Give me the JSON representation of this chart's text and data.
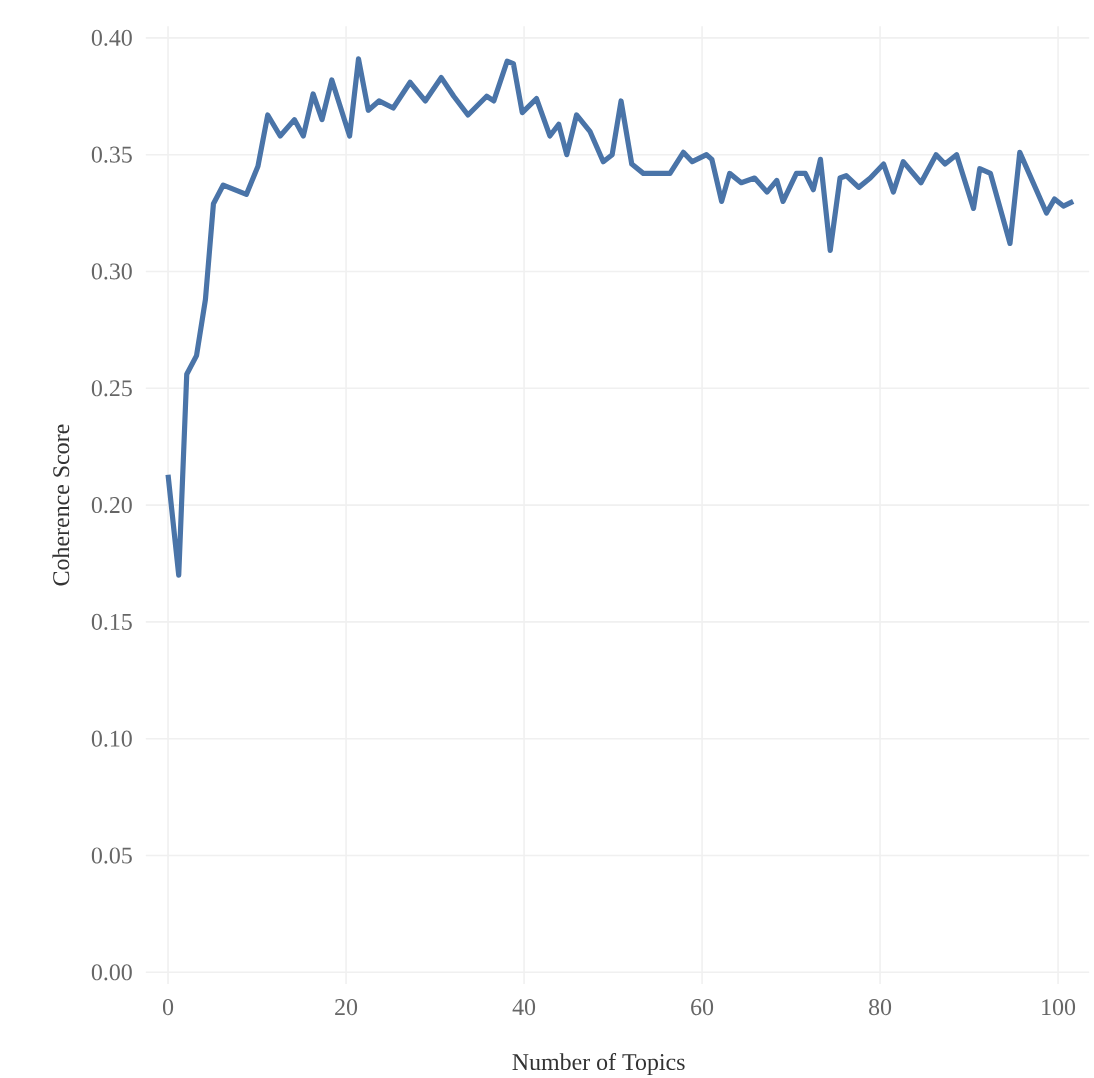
{
  "chart_data": {
    "type": "line",
    "xlabel": "Number of Topics",
    "ylabel": "Coherence Score",
    "xlim": [
      -2.5,
      103.5
    ],
    "ylim": [
      -0.005,
      0.405
    ],
    "xticks": [
      0,
      20,
      40,
      60,
      80,
      100
    ],
    "yticks": [
      {
        "value": 0,
        "label": "0.00"
      },
      {
        "value": 0.05,
        "label": "0.05"
      },
      {
        "value": 0.1,
        "label": "0.10"
      },
      {
        "value": 0.15,
        "label": "0.15"
      },
      {
        "value": 0.2,
        "label": "0.20"
      },
      {
        "value": 0.25,
        "label": "0.25"
      },
      {
        "value": 0.3,
        "label": "0.30"
      },
      {
        "value": 0.35,
        "label": "0.35"
      },
      {
        "value": 0.4,
        "label": "0.40"
      }
    ],
    "grid": true,
    "marker": "none",
    "line_style": "solid",
    "series": [
      {
        "color": "#4a74a8",
        "x": [
          0,
          1.2,
          2.1,
          3.2,
          4.2,
          5.1,
          6.2,
          8.8,
          10.1,
          11.2,
          12.6,
          14.2,
          15.2,
          16.3,
          17.3,
          18.4,
          20.4,
          21.4,
          22.5,
          23.7,
          25.3,
          27.2,
          28.9,
          30.7,
          32.1,
          33.7,
          35.8,
          36.6,
          38.1,
          38.8,
          39.8,
          41.4,
          42.9,
          43.9,
          44.8,
          45.9,
          47.4,
          48.9,
          49.9,
          50.9,
          52.1,
          53.4,
          56.4,
          57.9,
          58.9,
          60.5,
          61.1,
          62.2,
          63.1,
          64.4,
          65.9,
          67.3,
          68.4,
          69.1,
          70.6,
          71.6,
          72.5,
          73.3,
          74.4,
          75.5,
          76.2,
          77.6,
          78.9,
          80.4,
          81.5,
          82.6,
          84.6,
          86.3,
          87.3,
          88.6,
          90.5,
          91.2,
          92.4,
          94.6,
          95.7,
          98.7,
          99.6,
          100.6,
          101.7
        ],
        "values": [
          0.213,
          0.17,
          0.256,
          0.264,
          0.288,
          0.329,
          0.337,
          0.333,
          0.345,
          0.367,
          0.358,
          0.365,
          0.358,
          0.376,
          0.365,
          0.382,
          0.358,
          0.391,
          0.369,
          0.373,
          0.37,
          0.381,
          0.373,
          0.383,
          0.375,
          0.367,
          0.375,
          0.373,
          0.39,
          0.389,
          0.368,
          0.374,
          0.358,
          0.363,
          0.35,
          0.367,
          0.36,
          0.347,
          0.35,
          0.373,
          0.346,
          0.342,
          0.342,
          0.351,
          0.347,
          0.35,
          0.348,
          0.33,
          0.342,
          0.338,
          0.34,
          0.334,
          0.339,
          0.33,
          0.342,
          0.342,
          0.335,
          0.348,
          0.309,
          0.34,
          0.341,
          0.336,
          0.34,
          0.346,
          0.334,
          0.347,
          0.338,
          0.35,
          0.346,
          0.35,
          0.327,
          0.344,
          0.342,
          0.312,
          0.351,
          0.325,
          0.331,
          0.328,
          0.33
        ]
      }
    ]
  }
}
